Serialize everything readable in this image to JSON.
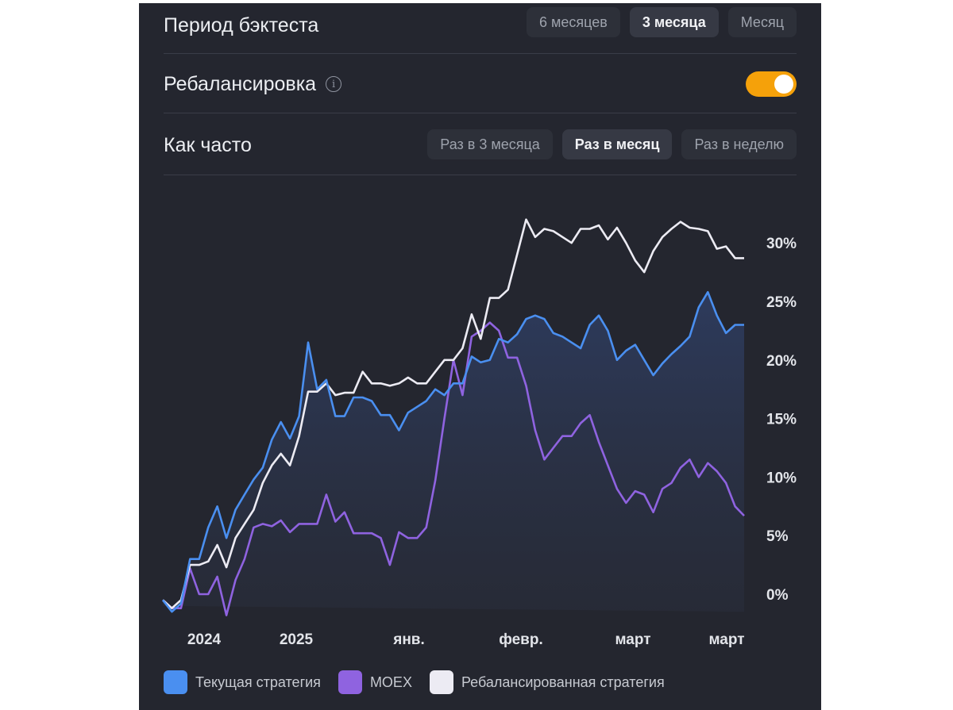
{
  "backtest": {
    "title": "Период бэктеста",
    "options": [
      "6 месяцев",
      "3 месяца",
      "Месяц"
    ],
    "selected": "3 месяца"
  },
  "rebalancing": {
    "title": "Ребалансировка",
    "info_icon": "info-icon",
    "enabled": true,
    "toggle_color": "#f5a10a"
  },
  "frequency": {
    "title": "Как часто",
    "options": [
      "Раз в 3 месяца",
      "Раз в месяц",
      "Раз в неделю"
    ],
    "selected": "Раз в месяц"
  },
  "chart_data": {
    "type": "line",
    "y_ticks": [
      "0%",
      "5%",
      "10%",
      "15%",
      "20%",
      "25%",
      "30%"
    ],
    "ylim": [
      -1,
      32
    ],
    "x_ticks": [
      "2024",
      "2025",
      "янв.",
      "февр.",
      "март",
      "март"
    ],
    "grid": false,
    "legend_position": "bottom",
    "series": [
      {
        "name": "Текущая стратегия",
        "color": "#4a8ff0",
        "filled": true,
        "values": [
          -0.5,
          -1.5,
          -0.8,
          3.0,
          3.0,
          5.7,
          7.5,
          4.8,
          7.2,
          8.5,
          9.8,
          10.8,
          13.2,
          14.7,
          13.3,
          15.2,
          21.5,
          17.5,
          18.3,
          15.2,
          15.2,
          16.8,
          16.8,
          16.5,
          15.3,
          15.3,
          14.0,
          15.5,
          16.0,
          16.5,
          17.5,
          17.0,
          18.0,
          18.0,
          20.3,
          19.8,
          20.0,
          21.8,
          21.5,
          22.2,
          23.5,
          23.8,
          23.5,
          22.3,
          22.0,
          21.5,
          21.0,
          23.0,
          23.8,
          22.5,
          20.0,
          20.8,
          21.3,
          20.0,
          18.7,
          19.7,
          20.5,
          21.2,
          22.0,
          24.5,
          25.8,
          23.8,
          22.3,
          23.0,
          23.0
        ]
      },
      {
        "name": "MOEX",
        "color": "#8f63e0",
        "filled": false,
        "values": [
          -0.5,
          -1.2,
          -1.2,
          2.2,
          0.0,
          0.0,
          1.5,
          -1.8,
          1.2,
          3.0,
          5.7,
          6.0,
          5.8,
          6.3,
          5.3,
          6.0,
          6.0,
          6.0,
          8.5,
          6.2,
          7.0,
          5.2,
          5.2,
          5.2,
          4.8,
          2.5,
          5.3,
          4.8,
          4.8,
          5.7,
          9.7,
          15.0,
          20.0,
          17.0,
          22.0,
          22.5,
          23.2,
          22.5,
          20.2,
          20.2,
          17.8,
          14.0,
          11.5,
          12.5,
          13.5,
          13.5,
          14.6,
          15.3,
          13.0,
          11.0,
          9.0,
          7.8,
          8.8,
          8.5,
          7.0,
          9.0,
          9.5,
          10.8,
          11.5,
          10.0,
          11.2,
          10.5,
          9.5,
          7.5,
          6.7
        ]
      },
      {
        "name": "Ребалансированная стратегия",
        "color": "#ecebf3",
        "filled": false,
        "values": [
          -0.5,
          -1.2,
          -0.5,
          2.5,
          2.5,
          2.8,
          4.2,
          2.3,
          4.8,
          6.0,
          7.2,
          9.5,
          11.0,
          12.0,
          11.0,
          13.5,
          17.3,
          17.3,
          18.0,
          17.0,
          17.2,
          17.2,
          19.0,
          18.0,
          18.0,
          17.8,
          18.0,
          18.5,
          18.0,
          18.0,
          19.0,
          20.0,
          20.0,
          21.0,
          23.9,
          21.8,
          25.3,
          25.3,
          26.0,
          29.0,
          32.0,
          30.5,
          31.2,
          31.0,
          30.5,
          30.0,
          31.2,
          31.2,
          31.5,
          30.3,
          31.3,
          30.0,
          28.5,
          27.5,
          29.3,
          30.5,
          31.2,
          31.8,
          31.3,
          31.2,
          31.0,
          29.5,
          29.7,
          28.7,
          28.7
        ]
      }
    ]
  }
}
